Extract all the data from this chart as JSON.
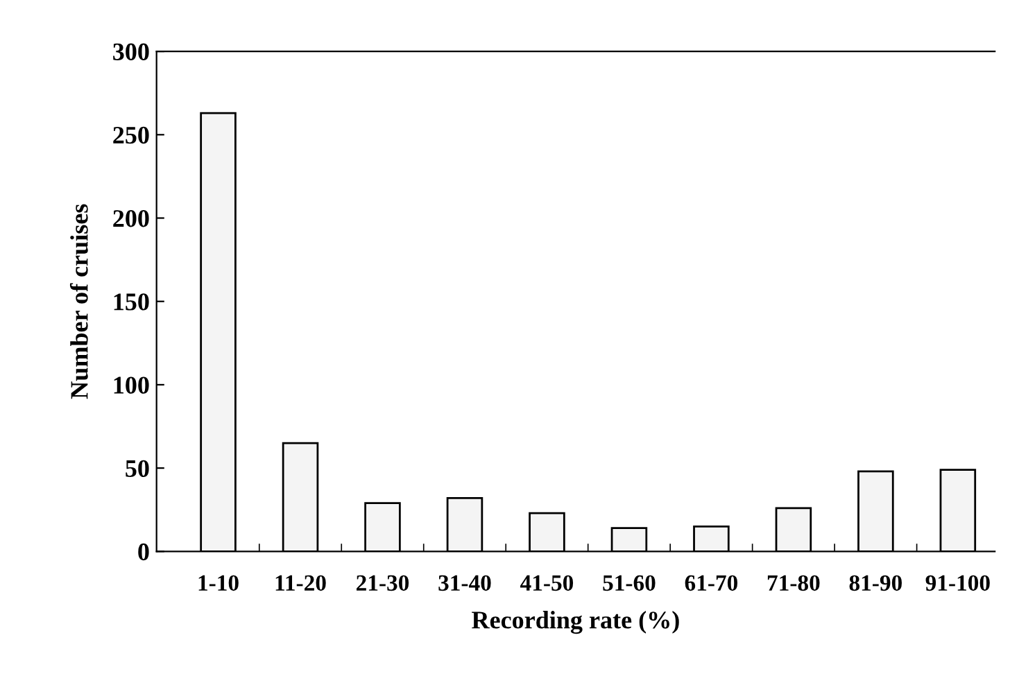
{
  "chart_data": {
    "type": "bar",
    "xlabel": "Recording rate (%)",
    "ylabel": "Number of cruises",
    "categories": [
      "1-10",
      "11-20",
      "21-30",
      "31-40",
      "41-50",
      "51-60",
      "61-70",
      "71-80",
      "81-90",
      "91-100"
    ],
    "values": [
      263,
      65,
      29,
      32,
      23,
      14,
      15,
      26,
      48,
      49
    ],
    "color": "#f4f4f4",
    "ylim": [
      0,
      300
    ],
    "yticks": [
      0,
      50,
      100,
      150,
      200,
      250,
      300
    ],
    "grid": false
  }
}
